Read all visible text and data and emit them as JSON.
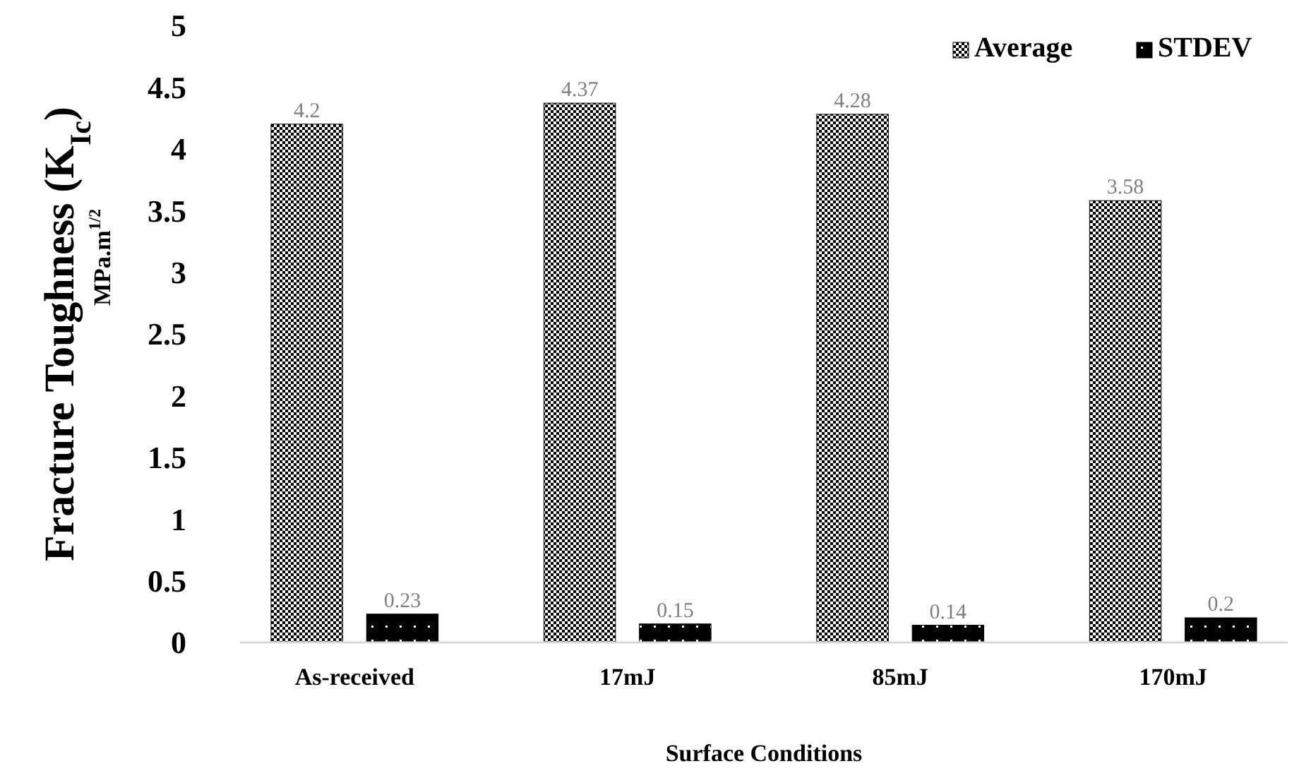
{
  "chart_data": {
    "type": "bar",
    "xlabel": "Surface Conditions",
    "ylabel": "Fracture Toughness (K$_{Ic}$)\nMPa.m$^{1/2}$",
    "categories": [
      "As-received",
      "17mJ",
      "85mJ",
      "170mJ"
    ],
    "series": [
      {
        "name": "Average",
        "color": "#000000",
        "values": [
          4.2,
          4.37,
          4.28,
          3.58
        ]
      },
      {
        "name": "STDEV",
        "color": "#000000",
        "values": [
          0.23,
          0.15,
          0.14,
          0.2
        ]
      }
    ],
    "ylim": [
      0,
      5
    ],
    "yticks": [
      0,
      0.5,
      1,
      1.5,
      2,
      2.5,
      3,
      3.5,
      4,
      4.5,
      5
    ],
    "data_labels": true,
    "legend": "top right",
    "grid": false
  }
}
